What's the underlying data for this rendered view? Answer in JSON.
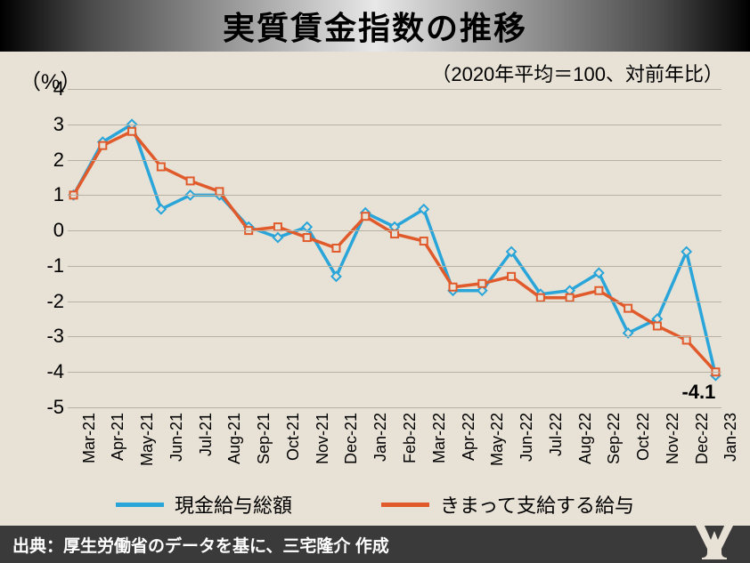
{
  "title": "実質賃金指数の推移",
  "subtitle": "（2020年平均＝100、対前年比）",
  "yaxis_unit": "（%）",
  "source": "出典：厚生労働省のデータを基に、三宅隆介 作成",
  "chart": {
    "type": "line",
    "background_color": "#e8e2d6",
    "grid_color": "#b8b0a0",
    "ylim": [
      -5,
      4
    ],
    "yticks": [
      4,
      3,
      2,
      1,
      0,
      -1,
      -2,
      -3,
      -4,
      -5
    ],
    "categories": [
      "Mar-21",
      "Apr-21",
      "May-21",
      "Jun-21",
      "Jul-21",
      "Aug-21",
      "Sep-21",
      "Oct-21",
      "Nov-21",
      "Dec-21",
      "Jan-22",
      "Feb-22",
      "Mar-22",
      "Apr-22",
      "May-22",
      "Jun-22",
      "Jul-22",
      "Aug-22",
      "Sep-22",
      "Oct-22",
      "Nov-22",
      "Dec-22",
      "Jan-23"
    ],
    "series": [
      {
        "name": "現金給与総額",
        "color": "#2aa5d9",
        "marker": "diamond",
        "values": [
          1.0,
          2.5,
          3.0,
          0.6,
          1.0,
          1.0,
          0.1,
          -0.2,
          0.1,
          -1.3,
          0.5,
          0.1,
          0.6,
          -1.7,
          -1.7,
          -0.6,
          -1.8,
          -1.7,
          -1.2,
          -2.9,
          -2.5,
          -0.6,
          -4.1
        ]
      },
      {
        "name": "きまって支給する給与",
        "color": "#e05a2b",
        "marker": "square",
        "values": [
          1.0,
          2.4,
          2.8,
          1.8,
          1.4,
          1.1,
          0.0,
          0.1,
          -0.2,
          -0.5,
          0.4,
          -0.1,
          -0.3,
          -1.6,
          -1.5,
          -1.3,
          -1.9,
          -1.9,
          -1.7,
          -2.2,
          -2.7,
          -3.1,
          -4.0
        ]
      }
    ],
    "annotation": {
      "text": "-4.1",
      "x_index": 22,
      "y": -4.1
    },
    "line_width": 3.5,
    "marker_size": 5,
    "xlabel_rotation": -90,
    "label_fontsize": 20
  },
  "legend": {
    "items": [
      {
        "label": "現金給与総額",
        "color": "#2aa5d9"
      },
      {
        "label": "きまって支給する給与",
        "color": "#e05a2b"
      }
    ]
  }
}
